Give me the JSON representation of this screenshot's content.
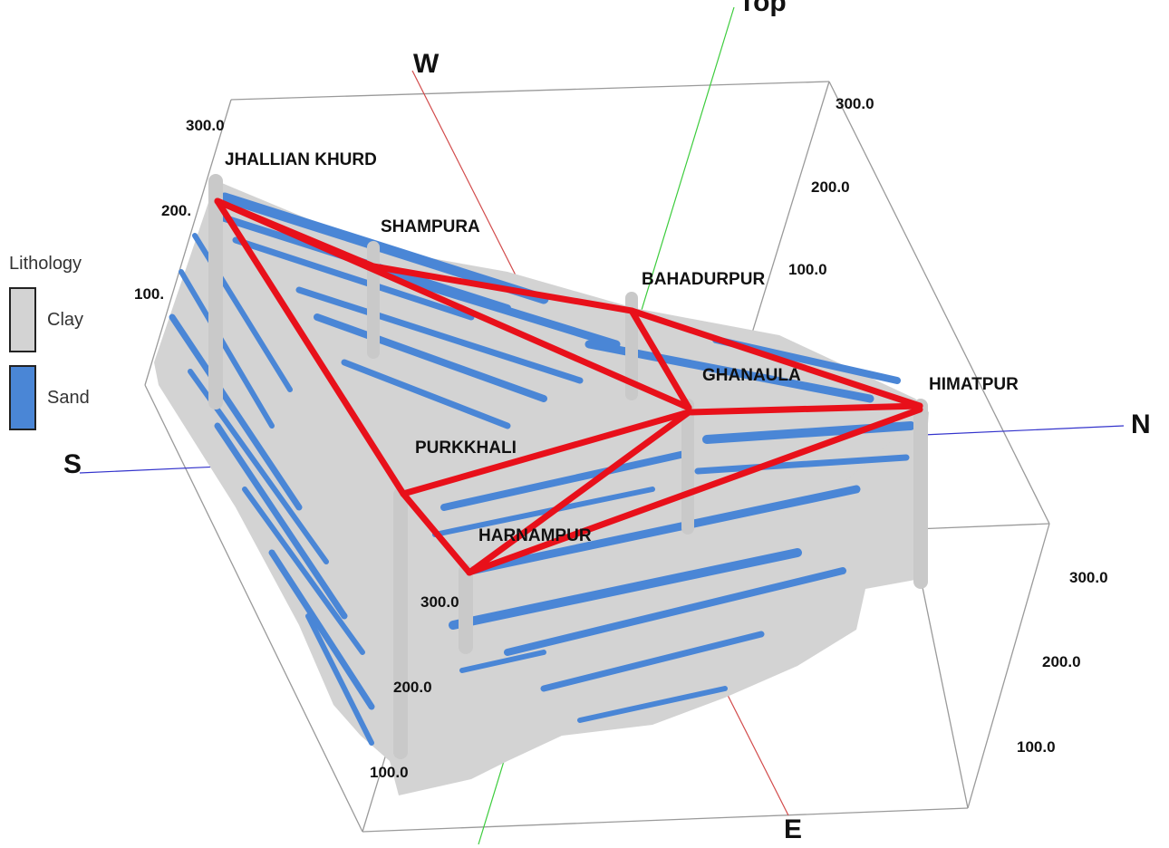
{
  "diagram": {
    "axes": {
      "top_label": "Top",
      "west": "W",
      "north": "N",
      "south": "S",
      "east": "E"
    },
    "ticks": {
      "left_300": "300.0",
      "left_200": "200.",
      "left_100": "100.",
      "right_300": "300.0",
      "right_200": "200.0",
      "right_100": "100.0",
      "front_300": "300.0",
      "front_200": "200.0",
      "front_100": "100.0",
      "br_300": "300.0",
      "br_200": "200.0",
      "br_100": "100.0"
    },
    "wells": {
      "jhallian_khurd": "JHALLIAN KHURD",
      "shampura": "SHAMPURA",
      "bahadurpur": "BAHADURPUR",
      "ghanaula": "GHANAULA",
      "himatpur": "HIMATPUR",
      "purkkhali": "PURKKHALI",
      "harnampur": "HARNAMPUR"
    },
    "colors": {
      "clay": "#d3d3d3",
      "sand": "#4a86d6",
      "section_line": "#e8101a",
      "box_edge": "#9a9a9a",
      "axis_ns": "#3333cc",
      "axis_we": "#d24b4b",
      "axis_top": "#3ccc3c"
    }
  },
  "legend": {
    "title": "Lithology",
    "items": [
      {
        "label": "Clay",
        "color": "#d3d3d3"
      },
      {
        "label": "Sand",
        "color": "#4a86d6"
      }
    ]
  }
}
